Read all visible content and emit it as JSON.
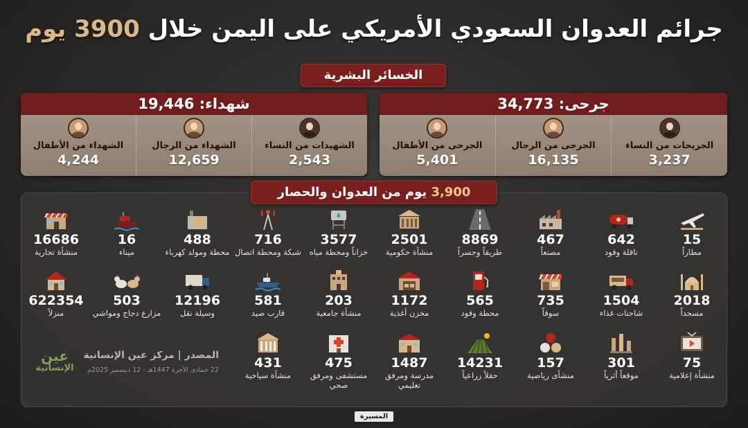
{
  "title": {
    "main": "جرائم العدوان السعودي الأمريكي على اليمن خلال",
    "accent": "3900 يوم"
  },
  "human_losses_label": "الخسائر البشرية",
  "martyrs": {
    "header": "شهداء: 19,446",
    "items": [
      {
        "label": "الشهيدات من النساء",
        "value": "2,543",
        "icon": "woman-icon"
      },
      {
        "label": "الشهداء من الرجال",
        "value": "12,659",
        "icon": "man-icon"
      },
      {
        "label": "الشهداء من الأطفال",
        "value": "4,244",
        "icon": "child-icon"
      }
    ]
  },
  "wounded": {
    "header": "جرحى: 34,773",
    "items": [
      {
        "label": "الجريحات من النساء",
        "value": "3,237",
        "icon": "woman-icon"
      },
      {
        "label": "الجرحى من الرجال",
        "value": "16,135",
        "icon": "man-icon"
      },
      {
        "label": "الجرحى من الأطفال",
        "value": "5,401",
        "icon": "child-icon"
      }
    ]
  },
  "days_banner": {
    "number": "3,900",
    "text": "يوم من العدوان والحصار"
  },
  "rows": [
    [
      {
        "value": "15",
        "label": "مطاراً",
        "icon": "airport-icon"
      },
      {
        "value": "642",
        "label": "ناقلة وقود",
        "icon": "fuel-tanker-icon"
      },
      {
        "value": "467",
        "label": "مصنعاً",
        "icon": "factory-icon"
      },
      {
        "value": "8869",
        "label": "طريقاً وجسراً",
        "icon": "road-icon"
      },
      {
        "value": "2501",
        "label": "منشأة حكومية",
        "icon": "government-building-icon"
      },
      {
        "value": "3577",
        "label": "خزاناً ومحطة مياه",
        "icon": "water-tank-icon"
      },
      {
        "value": "716",
        "label": "شبكة ومحطة اتصال",
        "icon": "telecom-tower-icon"
      },
      {
        "value": "488",
        "label": "محطة ومولد كهرباء",
        "icon": "power-station-icon"
      },
      {
        "value": "16",
        "label": "ميناء",
        "icon": "port-ship-icon"
      },
      {
        "value": "16686",
        "label": "منشأة تجارية",
        "icon": "shop-icon"
      }
    ],
    [
      {
        "value": "2018",
        "label": "مسجداً",
        "icon": "mosque-icon"
      },
      {
        "value": "1504",
        "label": "شاحنات غذاء",
        "icon": "food-truck-icon"
      },
      {
        "value": "735",
        "label": "سوقاً",
        "icon": "market-icon"
      },
      {
        "value": "565",
        "label": "محطة وقود",
        "icon": "fuel-station-icon"
      },
      {
        "value": "1172",
        "label": "مخزن أغذية",
        "icon": "food-warehouse-icon"
      },
      {
        "value": "203",
        "label": "منشأة جامعية",
        "icon": "university-icon"
      },
      {
        "value": "581",
        "label": "قارب صيد",
        "icon": "fishing-boat-icon"
      },
      {
        "value": "12196",
        "label": "وسيلة نقل",
        "icon": "truck-icon"
      },
      {
        "value": "503",
        "label": "مزارع دجاج ومواشي",
        "icon": "chicken-icon"
      },
      {
        "value": "622354",
        "label": "منزلاً",
        "icon": "house-icon"
      }
    ],
    [
      {
        "value": "75",
        "label": "منشأة إعلامية",
        "icon": "media-tv-icon"
      },
      {
        "value": "301",
        "label": "موقعاً أثرياً",
        "icon": "ruins-icon"
      },
      {
        "value": "157",
        "label": "منشأى رياضية",
        "icon": "sports-balls-icon"
      },
      {
        "value": "14231",
        "label": "حقلاً زراعياً",
        "icon": "farm-field-icon"
      },
      {
        "value": "1487",
        "label": "مدرسة ومرفق تعليمي",
        "icon": "school-icon"
      },
      {
        "value": "475",
        "label": "مستشفى ومرفق صحي",
        "icon": "hospital-icon"
      },
      {
        "value": "431",
        "label": "منشأة سياحية",
        "icon": "tourism-icon"
      }
    ]
  ],
  "source": {
    "line1": "المصدر | مركز عين الإنسانية",
    "line2": "22 جمادى الآخرة 1447هـ - 12 ديسمبر 2025م"
  },
  "logo": {
    "line1": "عين",
    "line2": "الإنسانية"
  },
  "watermark": "المسيرة",
  "colors": {
    "accent_red": "#7a1f1f",
    "gold": "#d9b98a",
    "panel_tan": "#a79889"
  }
}
